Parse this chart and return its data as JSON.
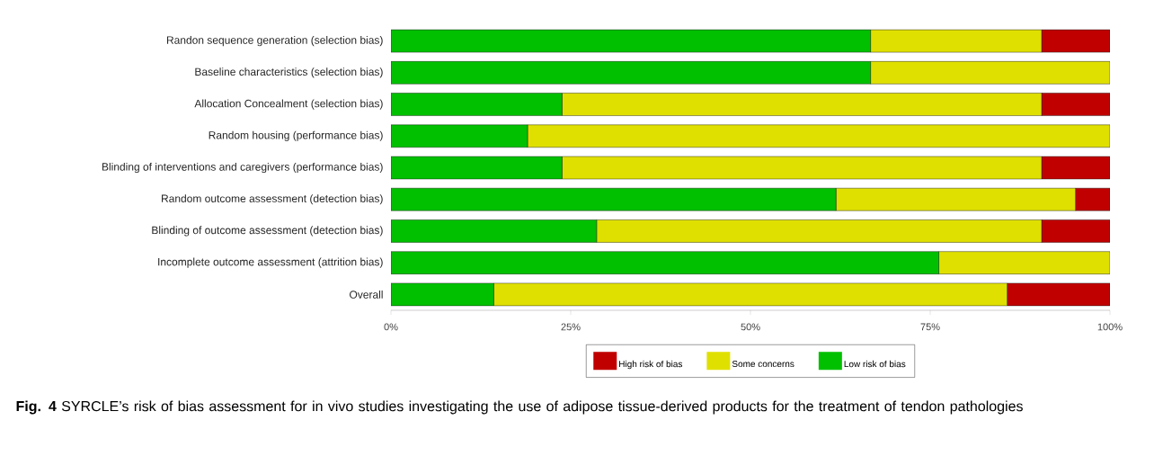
{
  "chart_data": {
    "type": "bar",
    "orientation": "horizontal",
    "stacked": true,
    "categories": [
      "Randon sequence generation (selection bias)",
      "Baseline characteristics (selection bias)",
      "Allocation Concealment (selection bias)",
      "Random housing (performance bias)",
      "Blinding of interventions and caregivers (performance bias)",
      "Random outcome assessment (detection bias)",
      "Blinding of outcome assessment (detection bias)",
      "Incomplete outcome assessment (attrition bias)",
      "Overall"
    ],
    "series": [
      {
        "name": "Low risk of bias",
        "color": "#00c000",
        "values": [
          66.7,
          66.7,
          23.8,
          19.0,
          23.8,
          61.9,
          28.6,
          76.2,
          14.3
        ]
      },
      {
        "name": "Some concerns",
        "color": "#e0e000",
        "values": [
          23.8,
          33.3,
          66.7,
          81.0,
          66.7,
          33.3,
          61.9,
          23.8,
          71.4
        ]
      },
      {
        "name": "High risk of bias",
        "color": "#c00000",
        "values": [
          9.5,
          0,
          9.5,
          0,
          9.5,
          4.8,
          9.5,
          0,
          14.3
        ]
      }
    ],
    "xlim": [
      0,
      100
    ],
    "xticks": [
      {
        "value": 0,
        "label": "0%"
      },
      {
        "value": 25,
        "label": "25%"
      },
      {
        "value": 50,
        "label": "50%"
      },
      {
        "value": 75,
        "label": "75%"
      },
      {
        "value": 100,
        "label": "100%"
      }
    ],
    "legend": "bottom",
    "annotations": [
      "**Fig. 4**  SYRCLE’s risk of bias assessment for in vivo studies investigating the use of adipose tissue-derived products for the treatment of tendon pathologies"
    ]
  }
}
